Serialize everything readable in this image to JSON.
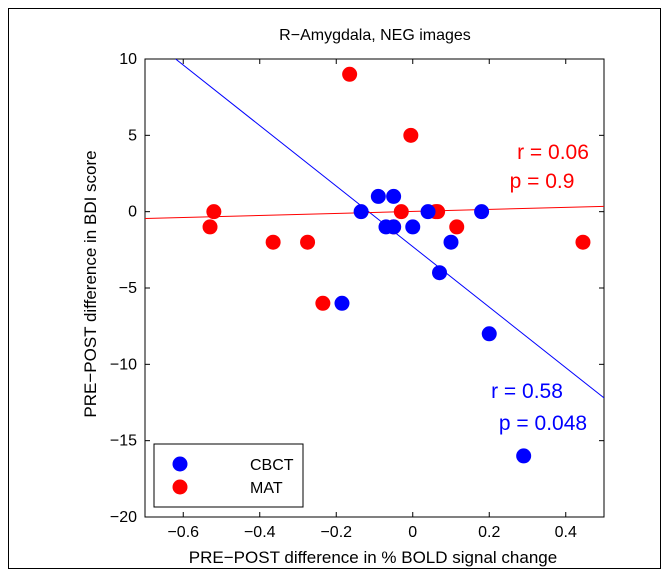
{
  "chart_data": {
    "type": "scatter",
    "title": "R−Amygdala, NEG images",
    "xlabel": "PRE−POST difference in % BOLD signal change",
    "ylabel": "PRE−POST difference in BDI score",
    "xlim": [
      -0.7,
      0.5
    ],
    "ylim": [
      -20,
      10
    ],
    "x_ticks": [
      -0.6,
      -0.4,
      -0.2,
      0,
      0.2,
      0.4
    ],
    "x_tick_labels": [
      "−0.6",
      "−0.4",
      "−0.2",
      "0",
      "0.2",
      "0.4"
    ],
    "y_ticks": [
      -20,
      -15,
      -10,
      -5,
      0,
      5,
      10
    ],
    "y_tick_labels": [
      "−20",
      "−15",
      "−10",
      "−5",
      "0",
      "5",
      "10"
    ],
    "grid": false,
    "legend_position": "bottom-left",
    "series": [
      {
        "name": "CBCT",
        "color": "#0000ff",
        "points": [
          [
            -0.185,
            -6
          ],
          [
            -0.135,
            0
          ],
          [
            -0.09,
            1
          ],
          [
            -0.07,
            -1
          ],
          [
            -0.05,
            1
          ],
          [
            -0.05,
            -1
          ],
          [
            0,
            -1
          ],
          [
            0.04,
            0
          ],
          [
            0.07,
            -4
          ],
          [
            0.1,
            -2
          ],
          [
            0.18,
            0
          ],
          [
            0.2,
            -8
          ],
          [
            0.29,
            -16
          ]
        ],
        "fit": {
          "x0": -0.62,
          "y0": 10,
          "x1": 0.5,
          "y1": -12.2
        },
        "r_label": "r = 0.58",
        "p_label": "p = 0.048"
      },
      {
        "name": "MAT",
        "color": "#ff0000",
        "points": [
          [
            -0.53,
            -1
          ],
          [
            -0.52,
            0
          ],
          [
            -0.365,
            -2
          ],
          [
            -0.275,
            -2
          ],
          [
            -0.235,
            -6
          ],
          [
            -0.165,
            9
          ],
          [
            -0.05,
            -1
          ],
          [
            -0.03,
            0
          ],
          [
            -0.005,
            5
          ],
          [
            0.06,
            0
          ],
          [
            0.065,
            0
          ],
          [
            0.115,
            -1
          ],
          [
            0.445,
            -2
          ]
        ],
        "fit": {
          "x0": -0.7,
          "y0": -0.45,
          "x1": 0.5,
          "y1": 0.35
        },
        "r_label": "r = 0.06",
        "p_label": "p = 0.9"
      }
    ]
  }
}
